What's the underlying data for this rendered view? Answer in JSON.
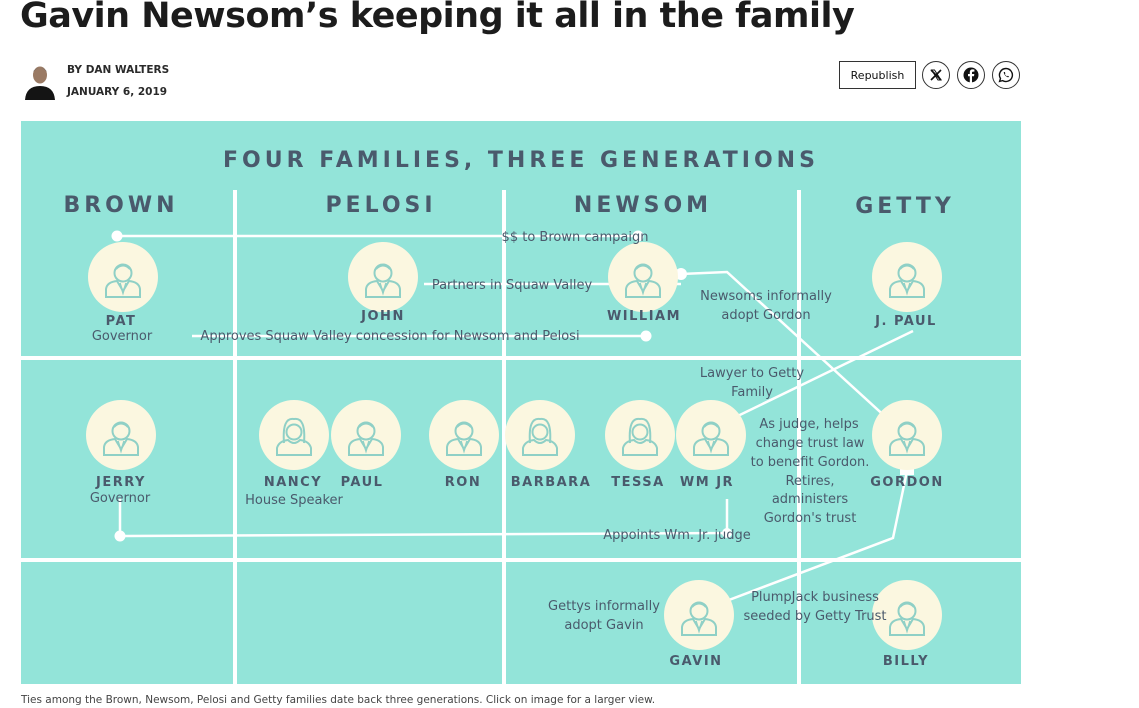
{
  "article": {
    "headline": "Gavin Newsom’s keeping it all in the family",
    "byline": "BY DAN WALTERS",
    "date": "JANUARY 6, 2019",
    "republish_label": "Republish",
    "share_buttons": [
      "x-icon",
      "facebook-icon",
      "whatsapp-icon"
    ],
    "caption": "Ties among the Brown, Newsom, Pelosi and Getty families date back three generations. Click on image for a larger view."
  },
  "infographic": {
    "title": "FOUR FAMILIES, THREE GENERATIONS",
    "families": [
      "BROWN",
      "PELOSI",
      "NEWSOM",
      "GETTY"
    ],
    "people": {
      "pat": {
        "name": "PAT",
        "role": "Governor"
      },
      "john": {
        "name": "JOHN"
      },
      "william": {
        "name": "WILLIAM"
      },
      "jpaul": {
        "name": "J. PAUL"
      },
      "jerry": {
        "name": "JERRY",
        "role": "Governor"
      },
      "nancy": {
        "name": "NANCY",
        "role": "House Speaker"
      },
      "paul": {
        "name": "PAUL"
      },
      "ron": {
        "name": "RON"
      },
      "barbara": {
        "name": "BARBARA"
      },
      "tessa": {
        "name": "TESSA"
      },
      "wmjr": {
        "name": "WM JR"
      },
      "gordon": {
        "name": "GORDON"
      },
      "gavin": {
        "name": "GAVIN"
      },
      "billy": {
        "name": "BILLY"
      }
    },
    "notes": {
      "campaign": "$$ to Brown campaign",
      "squaw_partners": "Partners in Squaw Valley",
      "adopt_gordon_1": "Newsoms informally",
      "adopt_gordon_2": "adopt Gordon",
      "approves": "Approves Squaw Valley concession for Newsom and Pelosi",
      "lawyer_1": "Lawyer to Getty",
      "lawyer_2": "Family",
      "judge_1": "As judge, helps",
      "judge_2": "change trust law",
      "judge_3": "to benefit Gordon.",
      "judge_4": "Retires,",
      "judge_5": "administers",
      "judge_6": "Gordon's trust",
      "appoints": "Appoints Wm. Jr. judge",
      "adopt_gavin_1": "Gettys informally",
      "adopt_gavin_2": "adopt Gavin",
      "plumpjack_1": "PlumpJack business",
      "plumpjack_2": "seeded by Getty Trust"
    },
    "colors": {
      "background": "#93e4d9",
      "circle": "#fbf7e0",
      "text": "#4a5a6c",
      "icon": "#8fd0c6"
    }
  }
}
